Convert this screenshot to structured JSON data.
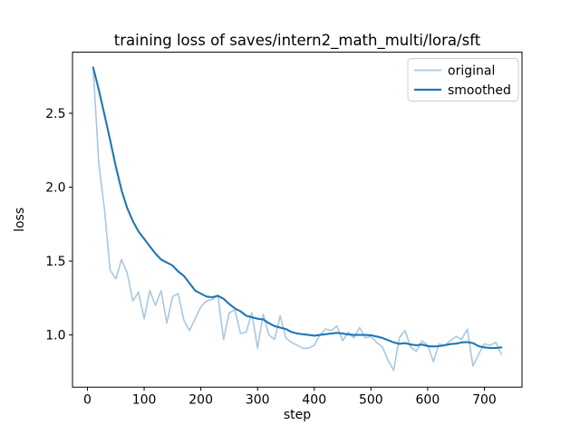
{
  "chart_data": {
    "type": "line",
    "title": "training loss of saves/intern2_math_multi/lora/sft",
    "xlabel": "step",
    "ylabel": "loss",
    "xlim": [
      -26.4,
      766.4
    ],
    "ylim": [
      0.647,
      2.913
    ],
    "x_ticks": [
      0,
      100,
      200,
      300,
      400,
      500,
      600,
      700
    ],
    "y_ticks": [
      1.0,
      1.5,
      2.0,
      2.5
    ],
    "grid": false,
    "legend_position": "upper right",
    "x": [
      10,
      20,
      30,
      40,
      50,
      60,
      70,
      80,
      90,
      100,
      110,
      120,
      130,
      140,
      150,
      160,
      170,
      180,
      190,
      200,
      210,
      220,
      230,
      240,
      250,
      260,
      270,
      280,
      290,
      300,
      310,
      320,
      330,
      340,
      350,
      360,
      370,
      380,
      390,
      400,
      410,
      420,
      430,
      440,
      450,
      460,
      470,
      480,
      490,
      500,
      510,
      520,
      530,
      540,
      550,
      560,
      570,
      580,
      590,
      600,
      610,
      620,
      630,
      640,
      650,
      660,
      670,
      680,
      690,
      700,
      710,
      720,
      730
    ],
    "series": [
      {
        "name": "original",
        "color": "#a8c7e1",
        "line_width": 1.6,
        "values": [
          2.81,
          2.16,
          1.85,
          1.44,
          1.38,
          1.51,
          1.42,
          1.23,
          1.29,
          1.11,
          1.3,
          1.2,
          1.3,
          1.08,
          1.26,
          1.28,
          1.1,
          1.03,
          1.11,
          1.19,
          1.23,
          1.24,
          1.27,
          0.97,
          1.15,
          1.17,
          1.01,
          1.02,
          1.15,
          0.91,
          1.14,
          1.0,
          0.97,
          1.13,
          0.98,
          0.95,
          0.93,
          0.91,
          0.91,
          0.93,
          1.0,
          1.04,
          1.03,
          1.06,
          0.96,
          1.02,
          0.98,
          1.05,
          0.98,
          0.99,
          0.95,
          0.92,
          0.83,
          0.76,
          0.98,
          1.03,
          0.92,
          0.89,
          0.96,
          0.93,
          0.82,
          0.94,
          0.93,
          0.96,
          0.99,
          0.97,
          1.04,
          0.79,
          0.87,
          0.94,
          0.93,
          0.95,
          0.87
        ]
      },
      {
        "name": "smoothed",
        "color": "#1f77b4",
        "line_width": 2.1,
        "values": [
          2.81,
          2.66,
          2.49,
          2.32,
          2.14,
          1.98,
          1.86,
          1.77,
          1.7,
          1.65,
          1.6,
          1.55,
          1.51,
          1.49,
          1.47,
          1.43,
          1.4,
          1.35,
          1.3,
          1.28,
          1.26,
          1.255,
          1.265,
          1.245,
          1.21,
          1.18,
          1.16,
          1.13,
          1.12,
          1.11,
          1.105,
          1.08,
          1.06,
          1.05,
          1.04,
          1.02,
          1.01,
          1.005,
          1.0,
          0.995,
          1.0,
          1.005,
          1.01,
          1.014,
          1.01,
          1.003,
          1.0,
          1.0,
          1.0,
          0.998,
          0.99,
          0.98,
          0.965,
          0.95,
          0.94,
          0.945,
          0.936,
          0.93,
          0.935,
          0.925,
          0.922,
          0.924,
          0.93,
          0.938,
          0.941,
          0.95,
          0.952,
          0.945,
          0.924,
          0.916,
          0.912,
          0.912,
          0.916
        ]
      }
    ]
  },
  "legend": {
    "items": [
      {
        "label": "original",
        "color": "#a8c7e1"
      },
      {
        "label": "smoothed",
        "color": "#1f77b4"
      }
    ]
  },
  "colors": {
    "spine": "#000000",
    "background": "#ffffff",
    "legend_border": "#cccccc"
  }
}
